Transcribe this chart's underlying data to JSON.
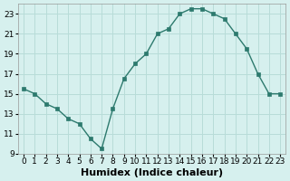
{
  "x": [
    0,
    1,
    2,
    3,
    4,
    5,
    6,
    7,
    8,
    9,
    10,
    11,
    12,
    13,
    14,
    15,
    16,
    17,
    18,
    19,
    20,
    21,
    22,
    23
  ],
  "y": [
    15.5,
    15.0,
    14.0,
    13.5,
    12.5,
    12.0,
    10.5,
    9.5,
    13.5,
    16.5,
    18.0,
    19.0,
    21.0,
    21.5,
    23.0,
    23.5,
    23.5,
    23.0,
    22.5,
    21.0,
    19.5,
    17.0,
    15.0,
    15.0
  ],
  "xlabel": "Humidex (Indice chaleur)",
  "xlim": [
    -0.5,
    23.5
  ],
  "ylim": [
    9,
    24
  ],
  "yticks": [
    9,
    11,
    13,
    15,
    17,
    19,
    21,
    23
  ],
  "xticks": [
    0,
    1,
    2,
    3,
    4,
    5,
    6,
    7,
    8,
    9,
    10,
    11,
    12,
    13,
    14,
    15,
    16,
    17,
    18,
    19,
    20,
    21,
    22,
    23
  ],
  "line_color": "#2d7a6e",
  "marker": "s",
  "marker_size": 2.5,
  "background_color": "#d6f0ee",
  "grid_color": "#b8dcd8",
  "label_fontsize": 8,
  "tick_fontsize": 6.5
}
